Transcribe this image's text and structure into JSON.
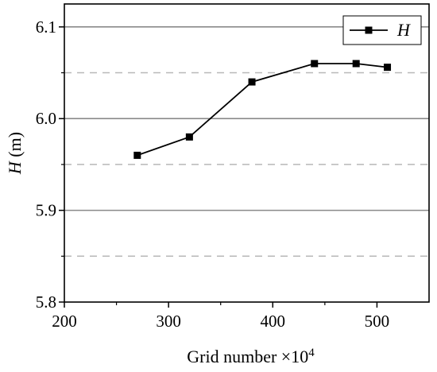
{
  "chart_data": {
    "type": "line",
    "xlabel": {
      "prefix": "Grid number ×10",
      "superscript": "4"
    },
    "ylabel": {
      "italic": "H",
      "rest": " (m)"
    },
    "xlim": [
      200,
      550
    ],
    "ylim": [
      5.8,
      6.125
    ],
    "xticks": [
      200,
      300,
      400,
      500
    ],
    "xtick_labels": [
      "200",
      "300",
      "400",
      "500"
    ],
    "yticks": [
      5.8,
      5.9,
      6.0,
      6.1
    ],
    "ytick_labels": [
      "5.8",
      "5.9",
      "6.0",
      "6.1"
    ],
    "grid": {
      "solid_y": [
        5.9,
        6.0,
        6.1
      ],
      "dashed_y": [
        5.85,
        5.95,
        6.05
      ]
    },
    "legend_position": "top-right",
    "series": [
      {
        "name": "H",
        "x": [
          270,
          320,
          380,
          440,
          480,
          510
        ],
        "y": [
          5.96,
          5.98,
          6.04,
          6.06,
          6.06,
          6.056
        ],
        "marker": "square",
        "color": "#000000"
      }
    ]
  }
}
